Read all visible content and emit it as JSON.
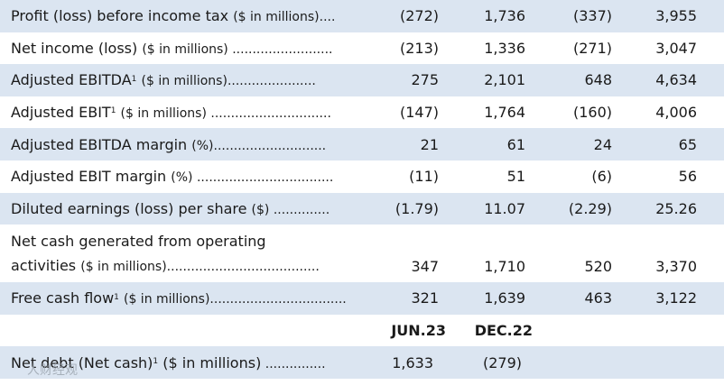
{
  "rows": [
    {
      "label": "Profit (loss) before income tax",
      "unit": "($ in millions)",
      "sup": "",
      "dots": "....",
      "values": [
        "(272)",
        "1,736",
        "(337)",
        "3,955"
      ]
    },
    {
      "label": "Net income (loss)",
      "unit": "($ in millions)",
      "sup": "",
      "dots": " .........................",
      "values": [
        "(213)",
        "1,336",
        "(271)",
        "3,047"
      ]
    },
    {
      "label": "Adjusted EBITDA",
      "unit": "($ in millions)",
      "sup": "1",
      "dots": "......................",
      "values": [
        "275",
        "2,101",
        "648",
        "4,634"
      ]
    },
    {
      "label": "Adjusted EBIT",
      "unit": "($ in millions)",
      "sup": "1",
      "dots": " ..............................",
      "values": [
        "(147)",
        "1,764",
        "(160)",
        "4,006"
      ]
    },
    {
      "label": "Adjusted EBITDA margin",
      "unit": "(%)",
      "sup": "",
      "dots": "............................",
      "values": [
        "21",
        "61",
        "24",
        "65"
      ]
    },
    {
      "label": "Adjusted EBIT margin",
      "unit": "(%)",
      "sup": "",
      "dots": " ..................................",
      "values": [
        "(11)",
        "51",
        "(6)",
        "56"
      ]
    },
    {
      "label": "Diluted earnings (loss) per share",
      "unit": "($)",
      "sup": "",
      "dots": " ..............",
      "values": [
        "(1.79)",
        "11.07",
        "(2.29)",
        "25.26"
      ]
    }
  ],
  "tall_row": {
    "line1": "Net cash generated from operating",
    "line2": "activities",
    "unit": "($ in millions)",
    "dots": "......................................",
    "values": [
      "347",
      "1,710",
      "520",
      "3,370"
    ]
  },
  "fcf_row": {
    "label": "Free cash flow",
    "sup": "1",
    "unit": "($ in millions)",
    "dots": "..................................",
    "values": [
      "321",
      "1,639",
      "463",
      "3,122"
    ]
  },
  "balance_header": {
    "col1": "JUN.23",
    "col2": "DEC.22"
  },
  "net_debt_row": {
    "label": "Net debt (Net cash)",
    "sup": "1",
    "unit": "($ in millions)",
    "dots": " ...............",
    "values": [
      "1,633",
      "(279)"
    ]
  },
  "watermark": "人财经观"
}
